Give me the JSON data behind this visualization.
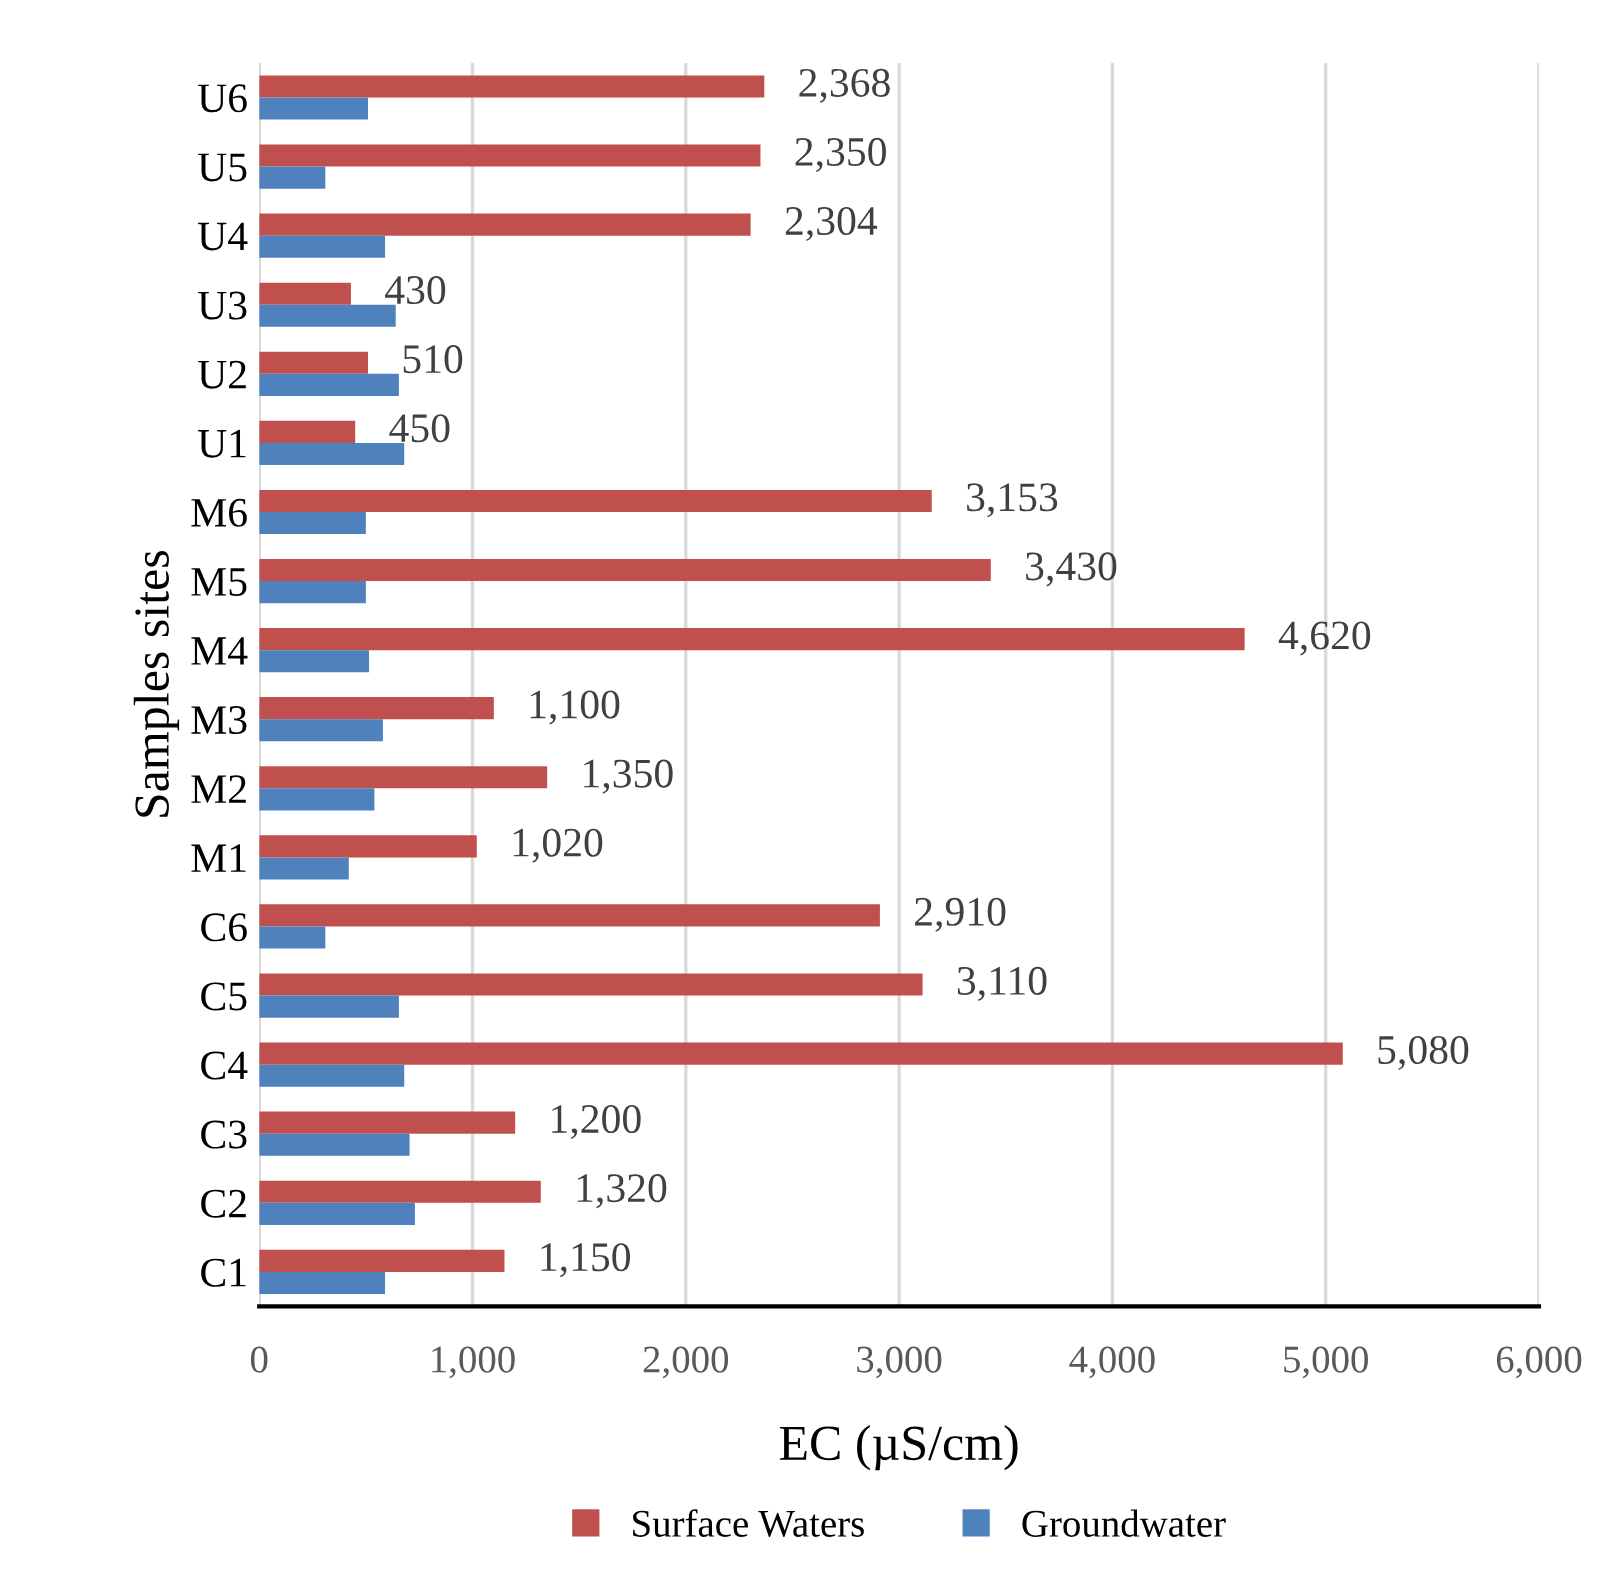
{
  "chart_data": {
    "type": "bar",
    "orientation": "horizontal",
    "xlabel": "EC (µS/cm)",
    "ylabel": "Samples sites",
    "categories": [
      "U6",
      "U5",
      "U4",
      "U3",
      "U2",
      "U1",
      "M6",
      "M5",
      "M4",
      "M3",
      "M2",
      "M1",
      "C6",
      "C5",
      "C4",
      "C3",
      "C2",
      "C1"
    ],
    "series": [
      {
        "name": "Surface Waters",
        "color": "#c0504d",
        "values": [
          2368,
          2350,
          2304,
          430,
          510,
          450,
          3153,
          3430,
          4620,
          1100,
          1350,
          1020,
          2910,
          3110,
          5080,
          1200,
          1320,
          1150
        ],
        "value_labels": [
          "2,368",
          "2,350",
          "2,304",
          "430",
          "510",
          "450",
          "3,153",
          "3,430",
          "4,620",
          "1,100",
          "1,350",
          "1,020",
          "2,910",
          "3,110",
          "5,080",
          "1,200",
          "1,320",
          "1,150"
        ]
      },
      {
        "name": "Groundwater",
        "color": "#4f81bd",
        "values": [
          510,
          310,
          590,
          640,
          655,
          680,
          500,
          500,
          515,
          580,
          540,
          420,
          310,
          655,
          680,
          705,
          730,
          590
        ]
      }
    ],
    "xlim": [
      0,
      6000
    ],
    "xticks": [
      {
        "value": 0,
        "label": "0"
      },
      {
        "value": 1000,
        "label": "1,000"
      },
      {
        "value": 2000,
        "label": "2,000"
      },
      {
        "value": 3000,
        "label": "3,000"
      },
      {
        "value": 4000,
        "label": "4,000"
      },
      {
        "value": 5000,
        "label": "5,000"
      },
      {
        "value": 6000,
        "label": "6,000"
      }
    ],
    "grid": "x",
    "legend": "bottom"
  }
}
